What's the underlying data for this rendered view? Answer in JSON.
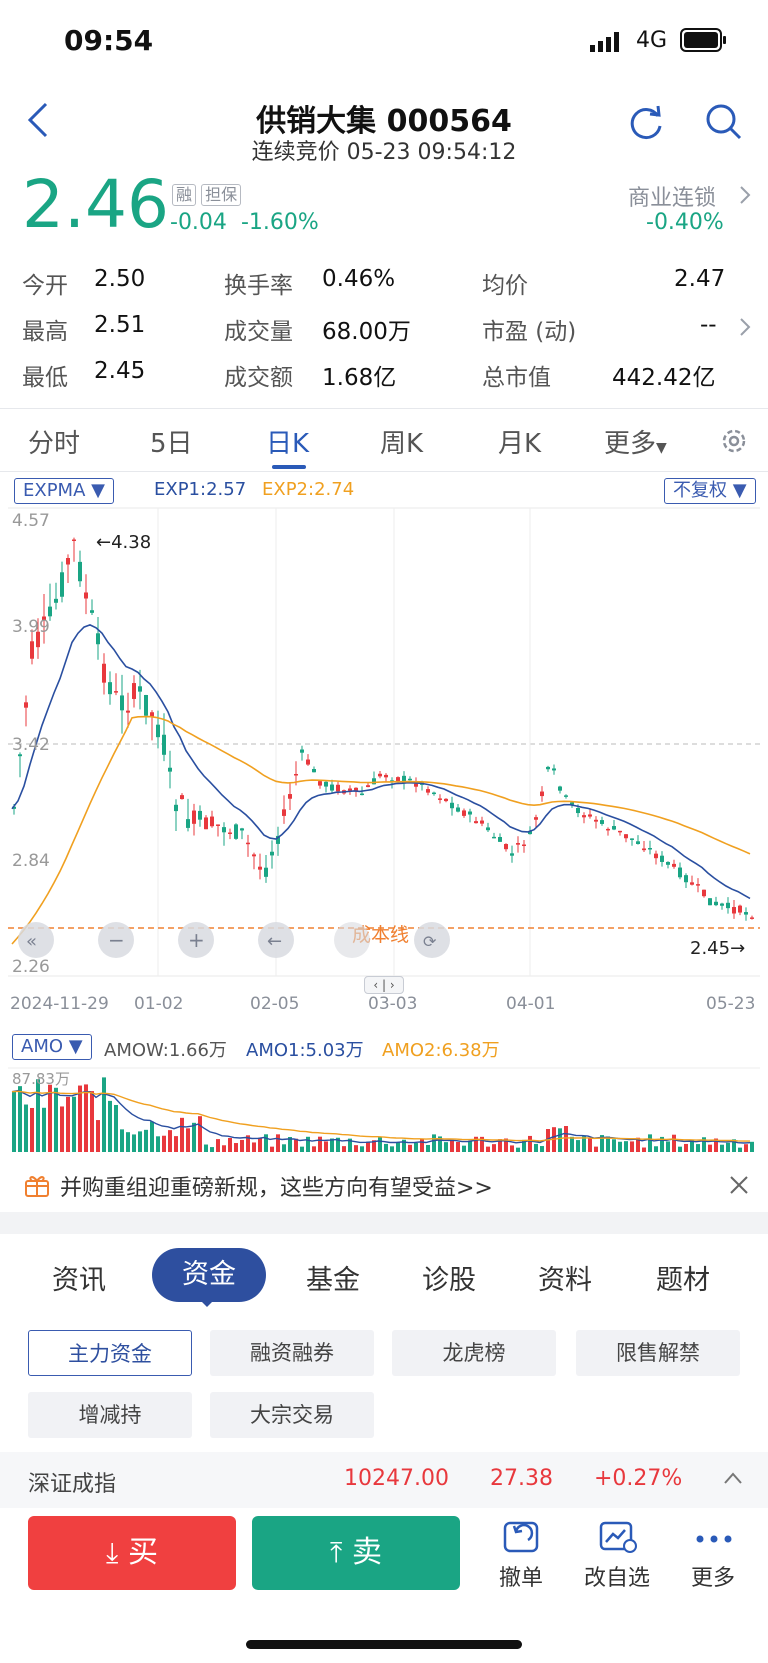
{
  "status": {
    "time": "09:54",
    "network": "4G"
  },
  "header": {
    "title": "供销大集 000564",
    "subtitle": "连续竞价 05-23 09:54:12"
  },
  "quote": {
    "price": "2.46",
    "change": "-0.04",
    "change_pct": "-1.60%",
    "tag_margin": "融",
    "tag_guarantee": "担保",
    "sector_name": "商业连锁",
    "sector_change": "-0.40%"
  },
  "stats": {
    "open_label": "今开",
    "open": "2.50",
    "turnover_label": "换手率",
    "turnover": "0.46%",
    "avg_label": "均价",
    "avg": "2.47",
    "high_label": "最高",
    "high": "2.51",
    "volume_label": "成交量",
    "volume": "68.00万",
    "pe_label": "市盈 (动)",
    "pe": "--",
    "low_label": "最低",
    "low": "2.45",
    "amount_label": "成交额",
    "amount": "1.68亿",
    "mktcap_label": "总市值",
    "mktcap": "442.42亿"
  },
  "period_tabs": [
    "分时",
    "5日",
    "日K",
    "周K",
    "月K",
    "更多"
  ],
  "kchart": {
    "indicator": "EXPMA",
    "exp1": "EXP1:2.57",
    "exp2": "EXP2:2.74",
    "adjust": "不复权",
    "price_labels": [
      "4.57",
      "3.99",
      "3.42",
      "2.84",
      "2.26"
    ],
    "max_label": "4.38",
    "last_label": "2.45",
    "cost_line_label": "成本线",
    "dates": [
      "2024-11-29",
      "01-02",
      "02-05",
      "03-03",
      "04-01",
      "05-23"
    ]
  },
  "volchart": {
    "indicator": "AMO",
    "amow": "AMOW:1.66万",
    "amo1": "AMO1:5.03万",
    "amo2": "AMO2:6.38万",
    "max_label": "87.83万"
  },
  "promo": {
    "text": "并购重组迎重磅新规，这些方向有望受益>>"
  },
  "feature_tabs": [
    "资讯",
    "资金",
    "基金",
    "诊股",
    "资料",
    "题材"
  ],
  "sub_buttons": [
    "主力资金",
    "融资融券",
    "龙虎榜",
    "限售解禁",
    "增减持",
    "大宗交易"
  ],
  "index": {
    "name": "深证成指",
    "value": "10247.00",
    "change": "27.38",
    "change_pct": "+0.27%"
  },
  "actions": {
    "buy": "买",
    "sell": "卖",
    "cancel": "撤单",
    "watch": "改自选",
    "more": "更多"
  },
  "colors": {
    "up": "#e8383d",
    "down": "#1aa584",
    "accent": "#2a5ab8",
    "exp2": "#f0a020"
  }
}
